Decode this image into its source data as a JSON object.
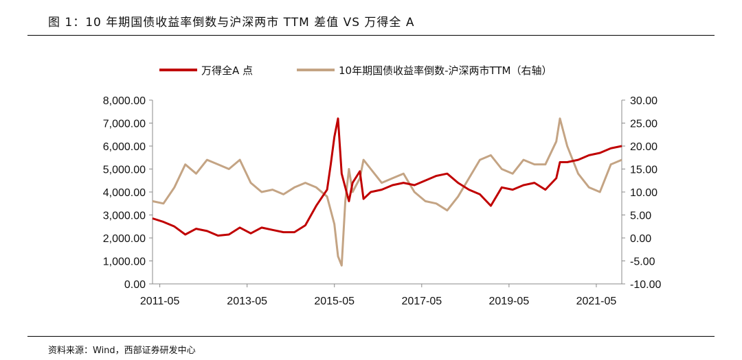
{
  "figure": {
    "title": "图 1：10 年期国债收益率倒数与沪深两市 TTM 差值 VS 万得全 A",
    "source": "资料来源：Wind，西部证券研发中心"
  },
  "chart_data": {
    "type": "line",
    "legend_position": "top",
    "grid": false,
    "x_tick_labels": [
      "2011-05",
      "2013-05",
      "2015-05",
      "2017-05",
      "2019-05",
      "2021-05"
    ],
    "y_left": {
      "ylim": [
        0,
        8000
      ],
      "ticks": [
        0,
        1000,
        2000,
        3000,
        4000,
        5000,
        6000,
        7000,
        8000
      ],
      "tick_labels": [
        "0.00",
        "1,000.00",
        "2,000.00",
        "3,000.00",
        "4,000.00",
        "5,000.00",
        "6,000.00",
        "7,000.00",
        "8,000.00"
      ]
    },
    "y_right": {
      "ylim": [
        -10,
        30
      ],
      "ticks": [
        -10,
        -5,
        0,
        5,
        10,
        15,
        20,
        25,
        30
      ],
      "tick_labels": [
        "-10.00",
        "-5.00",
        "0.00",
        "5.00",
        "10.00",
        "15.00",
        "20.00",
        "25.00",
        "30.00"
      ]
    },
    "series": [
      {
        "name": "万得全A 点",
        "axis": "left",
        "color": "#C00000",
        "x": [
          "2011-03",
          "2011-06",
          "2011-09",
          "2011-12",
          "2012-03",
          "2012-06",
          "2012-09",
          "2012-12",
          "2013-03",
          "2013-06",
          "2013-09",
          "2013-12",
          "2014-03",
          "2014-06",
          "2014-09",
          "2014-12",
          "2015-03",
          "2015-04",
          "2015-05",
          "2015-06",
          "2015-07",
          "2015-08",
          "2015-09",
          "2015-10",
          "2015-12",
          "2016-01",
          "2016-03",
          "2016-06",
          "2016-09",
          "2016-12",
          "2017-03",
          "2017-06",
          "2017-09",
          "2017-12",
          "2018-03",
          "2018-06",
          "2018-09",
          "2018-12",
          "2019-03",
          "2019-06",
          "2019-09",
          "2019-12",
          "2020-03",
          "2020-06",
          "2020-07",
          "2020-09",
          "2020-12",
          "2021-03",
          "2021-06",
          "2021-09",
          "2021-12"
        ],
        "values": [
          2850,
          2700,
          2500,
          2150,
          2400,
          2300,
          2100,
          2150,
          2450,
          2200,
          2450,
          2350,
          2250,
          2250,
          2550,
          3400,
          4100,
          5200,
          6400,
          7200,
          4800,
          4200,
          3600,
          4400,
          4900,
          3700,
          4000,
          4100,
          4300,
          4400,
          4300,
          4500,
          4700,
          4800,
          4400,
          4100,
          3900,
          3400,
          4200,
          4100,
          4300,
          4400,
          4100,
          4600,
          5300,
          5300,
          5400,
          5600,
          5700,
          5900,
          6000
        ]
      },
      {
        "name": "10年期国债收益率倒数-沪深两市TTM（右轴）",
        "axis": "right",
        "color": "#C4A484",
        "x": [
          "2011-03",
          "2011-06",
          "2011-09",
          "2011-12",
          "2012-03",
          "2012-06",
          "2012-09",
          "2012-12",
          "2013-03",
          "2013-06",
          "2013-09",
          "2013-12",
          "2014-03",
          "2014-06",
          "2014-09",
          "2014-12",
          "2015-03",
          "2015-04",
          "2015-05",
          "2015-06",
          "2015-07",
          "2015-08",
          "2015-09",
          "2015-10",
          "2015-12",
          "2016-01",
          "2016-03",
          "2016-06",
          "2016-09",
          "2016-12",
          "2017-03",
          "2017-06",
          "2017-09",
          "2017-12",
          "2018-03",
          "2018-06",
          "2018-09",
          "2018-12",
          "2019-03",
          "2019-06",
          "2019-09",
          "2019-12",
          "2020-03",
          "2020-06",
          "2020-07",
          "2020-09",
          "2020-12",
          "2021-03",
          "2021-06",
          "2021-09",
          "2021-12"
        ],
        "values": [
          8,
          7.5,
          11,
          16,
          14,
          17,
          16,
          15,
          17,
          12,
          10,
          10.5,
          9.5,
          11,
          12,
          11,
          9,
          6,
          3,
          -4,
          -6,
          8,
          15,
          10,
          13,
          17,
          15,
          12,
          13,
          14,
          10,
          8,
          7.5,
          6,
          9,
          13,
          17,
          18,
          15,
          14,
          17,
          16,
          16,
          21,
          26,
          20,
          14,
          11,
          10,
          16,
          17
        ]
      }
    ]
  }
}
